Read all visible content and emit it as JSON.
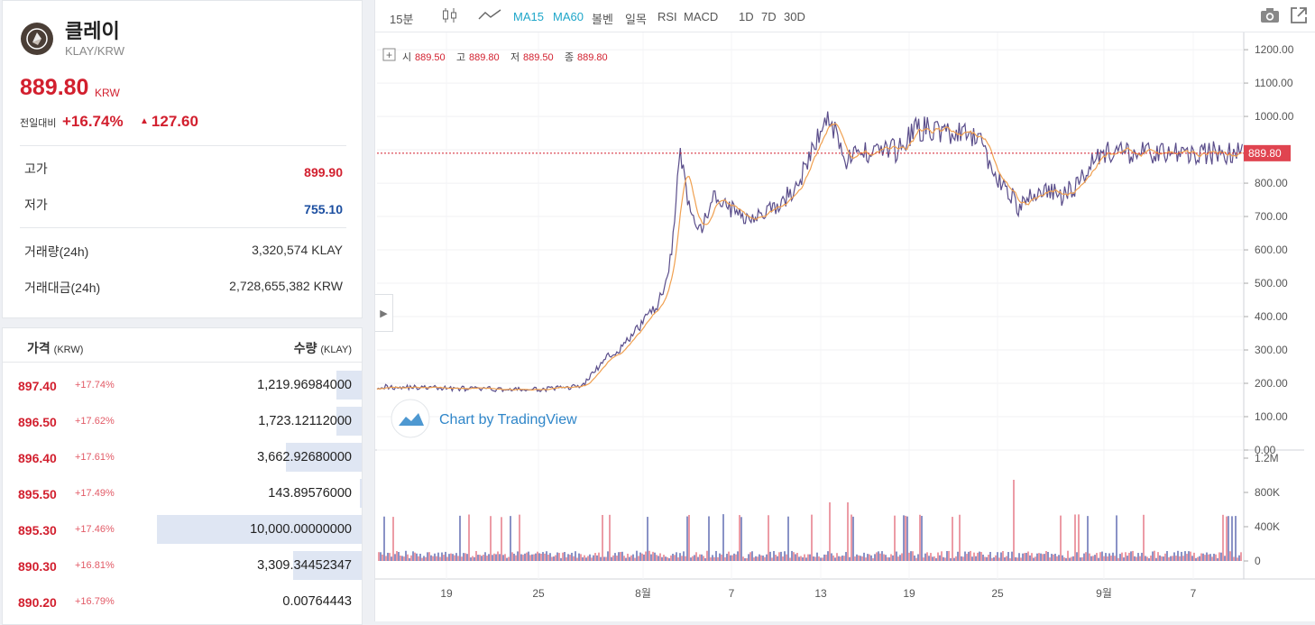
{
  "coin": {
    "name": "클레이",
    "pair": "KLAY/KRW",
    "price": "889.80",
    "price_unit": "KRW",
    "change_label": "전일대비",
    "change_pct": "+16.74%",
    "change_abs": "127.60",
    "change_arrow": "▲"
  },
  "stats": [
    {
      "label": "고가",
      "value": "899.90",
      "color": "#d21f2e"
    },
    {
      "label": "저가",
      "value": "755.10",
      "color": "#1b4ea0"
    },
    {
      "label": "거래량(24h)",
      "value": "3,320,574 KLAY",
      "color": "#333333"
    },
    {
      "label": "거래대금(24h)",
      "value": "2,728,655,382 KRW",
      "color": "#333333"
    }
  ],
  "orderbook": {
    "price_header": "가격",
    "price_unit": "(KRW)",
    "qty_header": "수량",
    "qty_unit": "(KLAY)",
    "rows": [
      {
        "price": "897.40",
        "pct": "+17.74%",
        "qty": "1,219.96984000",
        "depth": 0.07
      },
      {
        "price": "896.50",
        "pct": "+17.62%",
        "qty": "1,723.12112000",
        "depth": 0.07
      },
      {
        "price": "896.40",
        "pct": "+17.61%",
        "qty": "3,662.92680000",
        "depth": 0.21
      },
      {
        "price": "895.50",
        "pct": "+17.49%",
        "qty": "143.89576000",
        "depth": 0.005
      },
      {
        "price": "895.30",
        "pct": "+17.46%",
        "qty": "10,000.00000000",
        "depth": 0.57
      },
      {
        "price": "890.30",
        "pct": "+16.81%",
        "qty": "3,309.34452347",
        "depth": 0.19
      },
      {
        "price": "890.20",
        "pct": "+16.79%",
        "qty": "0.00764443",
        "depth": 0
      }
    ]
  },
  "toolbar": {
    "interval": "15분",
    "ma15": "MA15",
    "ma60": "MA60",
    "bollinger": "볼벤",
    "ichimoku": "일목",
    "rsi": "RSI",
    "macd": "MACD",
    "range_1d": "1D",
    "range_7d": "7D",
    "range_30d": "30D",
    "camera_icon": "camera-icon",
    "popout_icon": "popout-icon"
  },
  "colors": {
    "up": "#d21f2e",
    "down": "#1b4ea0",
    "accent": "#1ea6c9",
    "ma_line": "#f0a050"
  },
  "chart_data": {
    "type": "line",
    "title": "",
    "legend": {
      "o_label": "시",
      "o": "889.50",
      "h_label": "고",
      "h": "889.80",
      "l_label": "저",
      "l": "889.50",
      "c_label": "종",
      "c": "889.80"
    },
    "watermark": "Chart by TradingView",
    "last_price": "889.80",
    "price_axis": {
      "ticks": [
        "1200.00",
        "1100.00",
        "1000.00",
        "900.00",
        "800.00",
        "700.00",
        "600.00",
        "500.00",
        "400.00",
        "300.00",
        "200.00",
        "100.00",
        "0.00"
      ],
      "ylim": [
        0,
        1230
      ]
    },
    "volume_axis": {
      "ticks": [
        "1.2M",
        "800K",
        "400K",
        "0"
      ],
      "ylim": [
        0,
        1200000
      ]
    },
    "x_ticks": [
      "19",
      "25",
      "8월",
      "7",
      "13",
      "19",
      "25",
      "9월",
      "7"
    ],
    "series": [
      {
        "type": "line",
        "x": [
          0,
          1,
          2,
          3,
          4,
          5,
          6,
          7,
          8,
          9,
          10,
          11,
          12,
          13,
          14,
          15,
          16,
          17,
          18,
          19,
          20,
          21,
          22,
          23,
          24,
          25,
          26,
          27,
          28,
          29,
          30,
          31,
          32,
          33,
          34,
          35,
          36,
          37,
          38,
          39,
          40,
          41,
          42,
          43,
          44,
          45,
          46,
          47,
          48,
          49,
          50,
          51,
          52,
          53,
          54,
          55,
          56,
          57,
          58,
          59,
          60,
          61,
          62,
          63,
          64,
          65,
          66,
          67,
          68,
          69,
          70,
          71,
          72,
          73,
          74,
          75,
          76,
          77,
          78,
          79,
          80,
          81,
          82,
          83,
          84,
          85,
          86,
          87,
          88,
          89,
          90,
          91,
          92,
          93,
          94,
          95,
          96,
          97,
          98,
          99,
          100
        ],
        "values": [
          190,
          190,
          188,
          189,
          188,
          187,
          187,
          186,
          185,
          185,
          184,
          184,
          183,
          183,
          182,
          182,
          181,
          181,
          181,
          182,
          184,
          186,
          188,
          190,
          200,
          235,
          260,
          290,
          300,
          330,
          360,
          400,
          420,
          470,
          600,
          900,
          720,
          640,
          700,
          760,
          740,
          720,
          700,
          705,
          710,
          715,
          720,
          750,
          780,
          820,
          880,
          950,
          990,
          960,
          870,
          880,
          890,
          900,
          905,
          900,
          895,
          930,
          960,
          965,
          960,
          955,
          950,
          945,
          940,
          930,
          920,
          830,
          800,
          780,
          720,
          750,
          770,
          780,
          770,
          760,
          780,
          800,
          850,
          890,
          889.8,
          889.8,
          889.8,
          889.8,
          889.8,
          889.8,
          889.8,
          889.8,
          889.8,
          889.8,
          889.8,
          889.8,
          889.8,
          889.8,
          889.8,
          889.8,
          889.8
        ]
      }
    ]
  }
}
